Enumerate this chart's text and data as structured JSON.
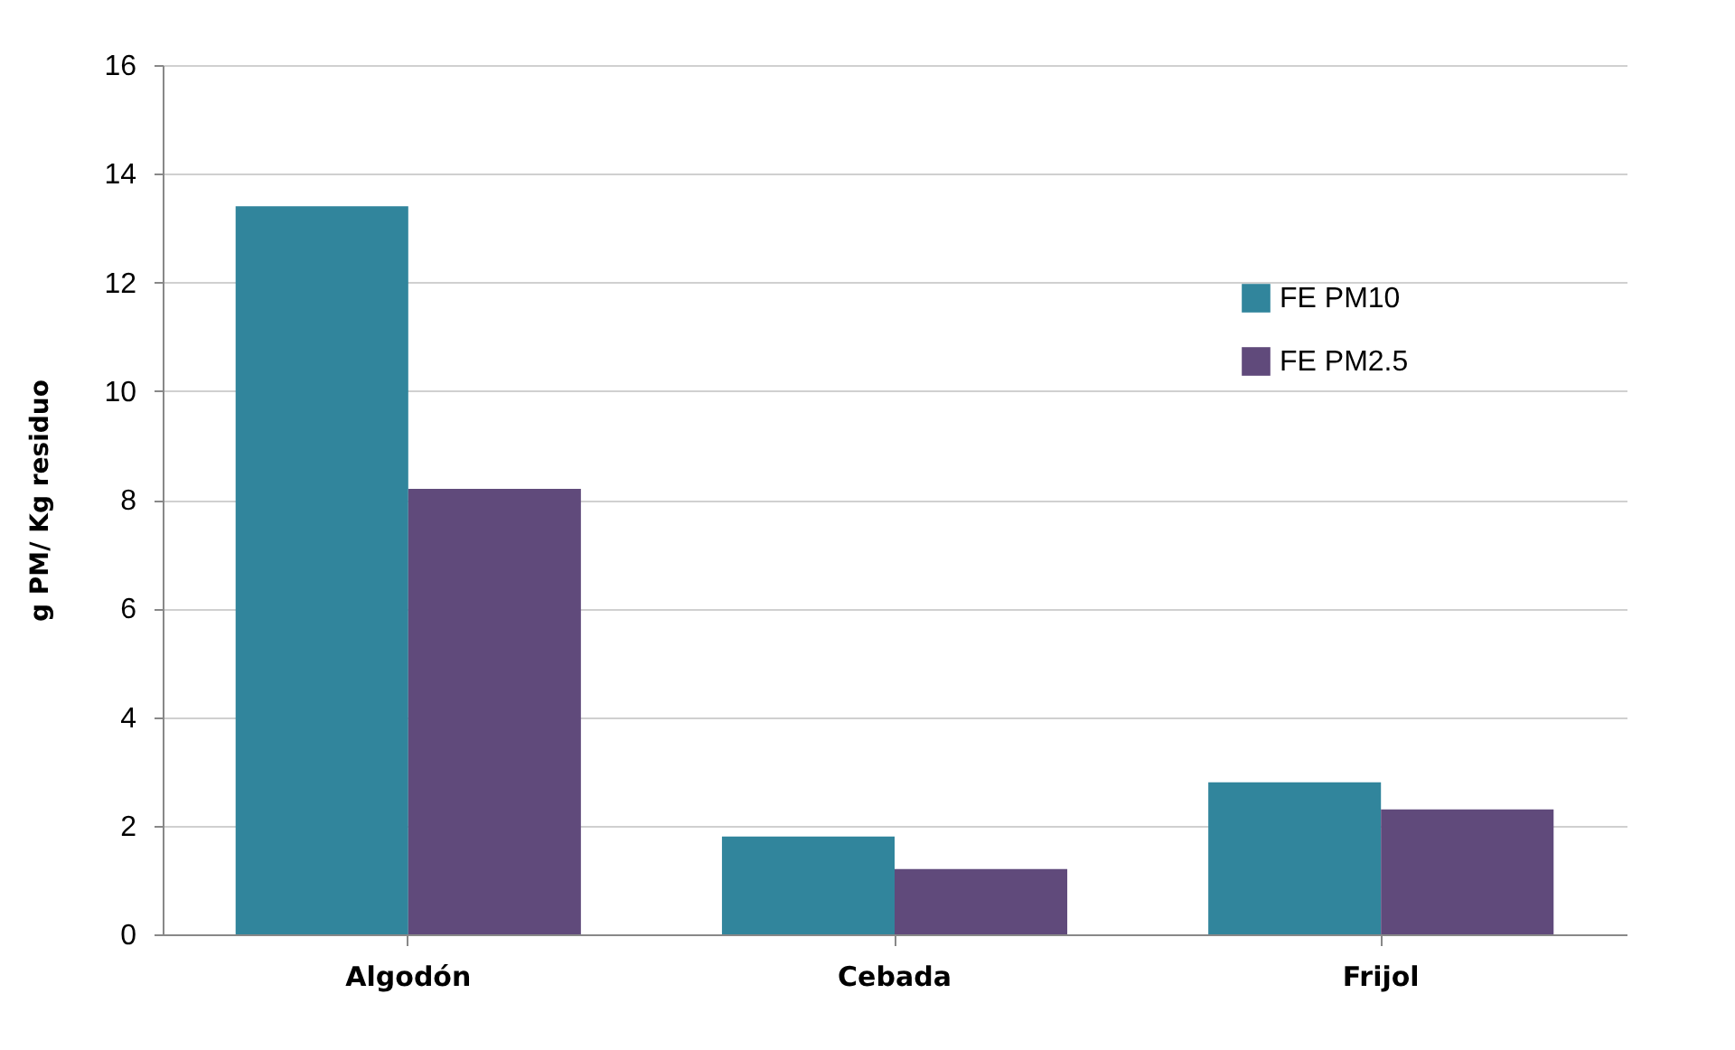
{
  "chart_data": {
    "type": "bar",
    "ylabel": "g PM/ Kg residuo",
    "categories": [
      "Algodón",
      "Cebada",
      "Frijol"
    ],
    "series": [
      {
        "name": "FE PM10",
        "color": "#31859c",
        "values": [
          13.4,
          1.8,
          2.8
        ]
      },
      {
        "name": "FE PM2.5",
        "color": "#604a7b",
        "values": [
          8.2,
          1.2,
          2.3
        ]
      }
    ],
    "ylim": [
      0,
      16
    ],
    "yticks": [
      0,
      2,
      4,
      6,
      8,
      10,
      12,
      14,
      16
    ],
    "grid": "y",
    "legend": "top right"
  }
}
